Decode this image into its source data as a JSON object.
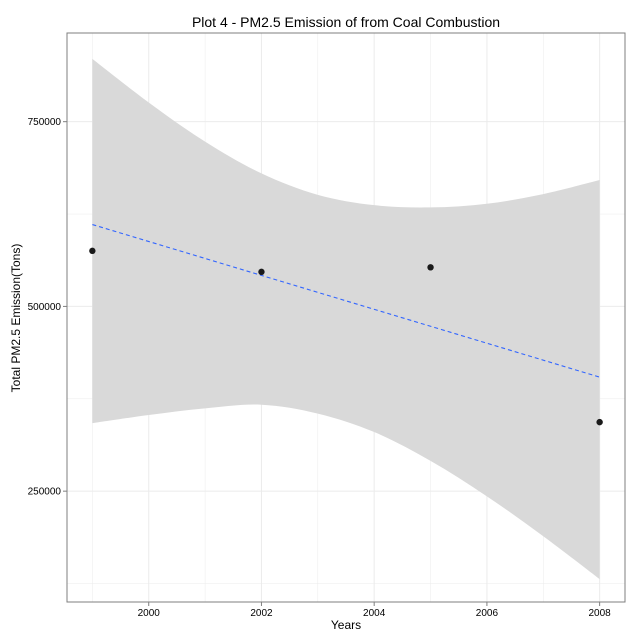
{
  "chart_data": {
    "type": "scatter",
    "title": "Plot 4 - PM2.5 Emission of from Coal Combustion",
    "xlabel": "Years",
    "ylabel": "Total PM2.5 Emission(Tons)",
    "xlim": [
      1998.55,
      2008.45
    ],
    "ylim": [
      100000,
      870000
    ],
    "x_ticks": [
      2000,
      2002,
      2004,
      2006,
      2008
    ],
    "y_ticks": [
      250000,
      500000,
      750000
    ],
    "x_tick_labels": [
      "2000",
      "2002",
      "2004",
      "2006",
      "2008"
    ],
    "y_tick_labels": [
      "250000",
      "500000",
      "750000"
    ],
    "grid": true,
    "points": [
      {
        "x": 1999,
        "y": 575200
      },
      {
        "x": 2002,
        "y": 546800
      },
      {
        "x": 2005,
        "y": 552900
      },
      {
        "x": 2008,
        "y": 343400
      }
    ],
    "trend_line": {
      "style": "dashed",
      "color": "#3366FF",
      "points": [
        {
          "x": 1999,
          "y": 610800
        },
        {
          "x": 2008,
          "y": 404300
        }
      ]
    },
    "confidence_band": {
      "color": "#D9D9D9",
      "x": [
        1999,
        2000,
        2001,
        2002,
        2003,
        2004,
        2005,
        2006,
        2007,
        2008
      ],
      "upper": [
        835000,
        776000,
        723000,
        680000,
        651000,
        637000,
        634000,
        639000,
        652000,
        671000
      ],
      "lower": [
        342000,
        353000,
        362000,
        367000,
        355000,
        330000,
        291000,
        243000,
        189000,
        131000
      ]
    },
    "colors": {
      "point": "#1a1a1a",
      "panel_border": "#7f7f7f",
      "grid": "#ebebeb",
      "background": "#ffffff"
    }
  }
}
